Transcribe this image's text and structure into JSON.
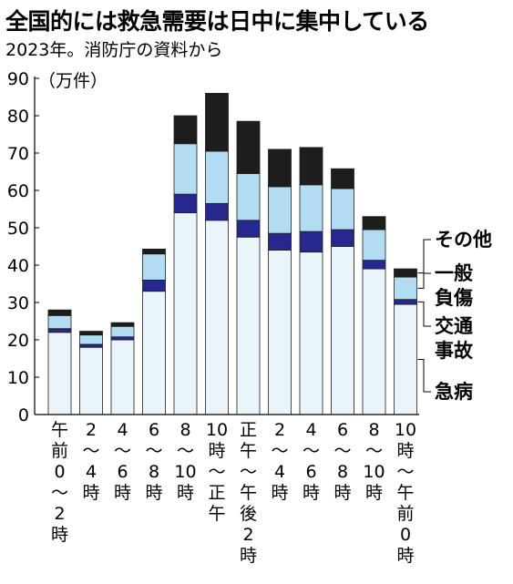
{
  "header": {
    "title": "全国的には救急需要は日中に集中している",
    "subtitle": "2023年。消防庁の資料から",
    "unit": "（万件）"
  },
  "colors": {
    "急病": "#eaf4fb",
    "交通事故": "#27288f",
    "一般負傷": "#b1dcf2",
    "その他": "#1d1d1d"
  },
  "chart_data": {
    "type": "bar",
    "stacked": true,
    "categories": [
      "午前0〜2時",
      "2〜4時",
      "4〜6時",
      "6〜8時",
      "8〜10時",
      "10時〜正午",
      "正午〜午後2時",
      "2〜4時",
      "4〜6時",
      "6〜8時",
      "8〜10時",
      "10時〜午前0時"
    ],
    "category_labels": [
      [
        "午",
        "前",
        "0",
        "〜",
        "2",
        "時"
      ],
      [
        "2",
        "〜",
        "4",
        "時"
      ],
      [
        "4",
        "〜",
        "6",
        "時"
      ],
      [
        "6",
        "〜",
        "8",
        "時"
      ],
      [
        "8",
        "〜",
        "10",
        "時"
      ],
      [
        "10",
        "時",
        "〜",
        "正",
        "午"
      ],
      [
        "正",
        "午",
        "〜",
        "午",
        "後",
        "2",
        "時"
      ],
      [
        "2",
        "〜",
        "4",
        "時"
      ],
      [
        "4",
        "〜",
        "6",
        "時"
      ],
      [
        "6",
        "〜",
        "8",
        "時"
      ],
      [
        "8",
        "〜",
        "10",
        "時"
      ],
      [
        "10",
        "時",
        "〜",
        "午",
        "前",
        "0",
        "時"
      ]
    ],
    "series": [
      {
        "name": "急病",
        "values": [
          22,
          18,
          20,
          33,
          54,
          52,
          47.5,
          44,
          43.5,
          45,
          39,
          29.5
        ]
      },
      {
        "name": "交通事故",
        "values": [
          1,
          0.8,
          0.8,
          3,
          5,
          4.5,
          4.5,
          4.5,
          5.5,
          4.5,
          2.3,
          1.3
        ]
      },
      {
        "name": "一般負傷",
        "values": [
          3.5,
          2.5,
          2.8,
          7,
          13.5,
          14,
          12.5,
          12.5,
          12.5,
          11,
          8.2,
          6
        ]
      },
      {
        "name": "その他",
        "values": [
          1.5,
          1,
          1,
          1.3,
          7.5,
          15.5,
          14,
          10,
          10,
          5.3,
          3.5,
          2.2
        ]
      }
    ],
    "legend": [
      {
        "series": "その他",
        "text": [
          "その他"
        ]
      },
      {
        "series": "一般負傷",
        "text": [
          "一般",
          "負傷"
        ]
      },
      {
        "series": "交通事故",
        "text": [
          "交通",
          "事故"
        ]
      },
      {
        "series": "急病",
        "text": [
          "急病"
        ]
      }
    ],
    "ylim": [
      0,
      90
    ],
    "yticks": [
      0,
      10,
      20,
      30,
      40,
      50,
      60,
      70,
      80,
      90
    ],
    "ylabel": "（万件）",
    "xlabel": "",
    "grid": false,
    "legend_placement": "right"
  }
}
